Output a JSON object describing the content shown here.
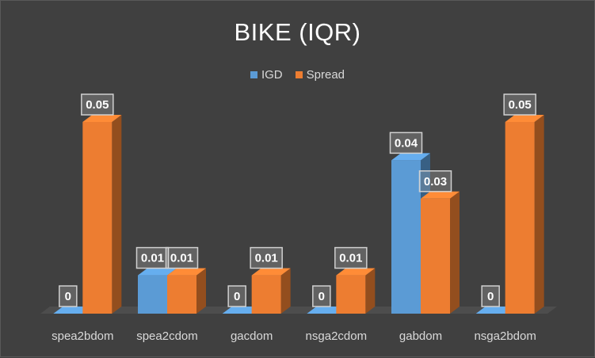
{
  "chart_data": {
    "type": "bar",
    "title": "BIKE (IQR)",
    "categories": [
      "spea2bdom",
      "spea2cdom",
      "gacdom",
      "nsga2cdom",
      "gabdom",
      "nsga2bdom"
    ],
    "series": [
      {
        "name": "IGD",
        "color": "#5b9bd5",
        "values": [
          0,
          0.01,
          0,
          0,
          0.04,
          0
        ]
      },
      {
        "name": "Spread",
        "color": "#ed7d31",
        "values": [
          0.05,
          0.01,
          0.01,
          0.01,
          0.03,
          0.05
        ]
      }
    ],
    "data_labels": [
      [
        "0",
        "0.01",
        "0",
        "0",
        "0.04",
        "0"
      ],
      [
        "0.05",
        "0.01",
        "0.01",
        "0.01",
        "0.03",
        "0.05"
      ]
    ],
    "ylim": [
      0,
      0.05
    ],
    "legend_position": "top",
    "grid": false
  }
}
